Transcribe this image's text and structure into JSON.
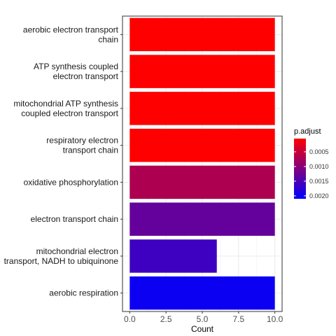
{
  "chart_data": {
    "type": "bar",
    "orientation": "horizontal",
    "categories": [
      [
        "aerobic electron transport",
        "chain"
      ],
      [
        "ATP synthesis coupled",
        "electron transport"
      ],
      [
        "mitochondrial ATP synthesis",
        "coupled electron transport"
      ],
      [
        "respiratory electron",
        "transport chain"
      ],
      [
        "oxidative phosphorylation"
      ],
      [
        "electron transport chain"
      ],
      [
        "mitochondrial electron",
        "transport, NADH to ubiquinone"
      ],
      [
        "aerobic respiration"
      ]
    ],
    "values": [
      10,
      10,
      10,
      10,
      10,
      10,
      6,
      10
    ],
    "p_adjust": [
      5e-05,
      5e-05,
      5e-05,
      5e-05,
      0.0007,
      0.0013,
      0.0016,
      0.002
    ],
    "xlabel": "Count",
    "xlim": [
      -0.5,
      10.5
    ],
    "xticks": [
      0,
      2.5,
      5,
      7.5,
      10
    ],
    "xtick_labels": [
      "0.0",
      "2.5",
      "5.0",
      "7.5",
      "10.0"
    ],
    "grid": true,
    "legend": {
      "title": "p.adjust",
      "position": "right",
      "range": [
        5e-05,
        0.0021
      ],
      "ticks": [
        0.0005,
        0.001,
        0.0015,
        0.002
      ],
      "tick_labels": [
        "0.0005",
        "0.0010",
        "0.0015",
        "0.0020"
      ],
      "color_low_value": "#ff0000",
      "color_high_value": "#0000ff"
    }
  }
}
